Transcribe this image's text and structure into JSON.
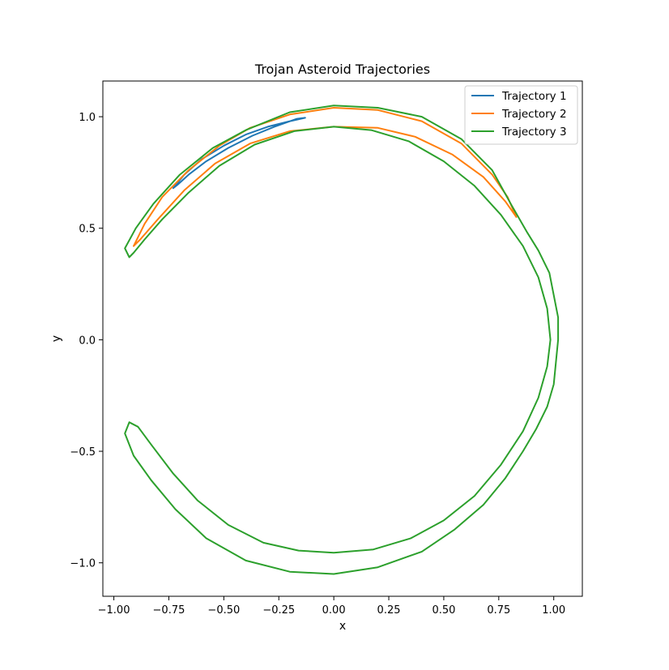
{
  "chart_data": {
    "type": "line",
    "title": "Trojan Asteroid Trajectories",
    "xlabel": "x",
    "ylabel": "y",
    "xlim": [
      -1.05,
      1.13
    ],
    "ylim": [
      -1.15,
      1.16
    ],
    "xticks": [
      -1.0,
      -0.75,
      -0.5,
      -0.25,
      0.0,
      0.25,
      0.5,
      0.75,
      1.0
    ],
    "xtick_labels": [
      "−1.00",
      "−0.75",
      "−0.50",
      "−0.25",
      "0.00",
      "0.25",
      "0.50",
      "0.75",
      "1.00"
    ],
    "yticks": [
      -1.0,
      -0.5,
      0.0,
      0.5,
      1.0
    ],
    "ytick_labels": [
      "−1.0",
      "−0.5",
      "0.0",
      "0.5",
      "1.0"
    ],
    "grid": false,
    "legend_position": "top-right",
    "series": [
      {
        "name": "Trajectory 1",
        "color": "#1f77b4",
        "points": [
          [
            -0.73,
            0.68
          ],
          [
            -0.68,
            0.74
          ],
          [
            -0.6,
            0.81
          ],
          [
            -0.5,
            0.87
          ],
          [
            -0.4,
            0.92
          ],
          [
            -0.3,
            0.955
          ],
          [
            -0.2,
            0.98
          ],
          [
            -0.13,
            0.995
          ],
          [
            -0.17,
            0.99
          ],
          [
            -0.27,
            0.955
          ],
          [
            -0.37,
            0.915
          ],
          [
            -0.48,
            0.86
          ],
          [
            -0.58,
            0.8
          ],
          [
            -0.66,
            0.74
          ],
          [
            -0.71,
            0.695
          ],
          [
            -0.73,
            0.68
          ]
        ]
      },
      {
        "name": "Trajectory 2",
        "color": "#ff7f0e",
        "points": [
          [
            -0.91,
            0.42
          ],
          [
            -0.86,
            0.52
          ],
          [
            -0.78,
            0.64
          ],
          [
            -0.66,
            0.76
          ],
          [
            -0.52,
            0.87
          ],
          [
            -0.38,
            0.95
          ],
          [
            -0.2,
            1.01
          ],
          [
            0.0,
            1.04
          ],
          [
            0.2,
            1.03
          ],
          [
            0.4,
            0.98
          ],
          [
            0.58,
            0.88
          ],
          [
            0.72,
            0.74
          ],
          [
            0.79,
            0.64
          ],
          [
            0.83,
            0.55
          ],
          [
            0.78,
            0.62
          ],
          [
            0.68,
            0.73
          ],
          [
            0.54,
            0.83
          ],
          [
            0.37,
            0.91
          ],
          [
            0.2,
            0.95
          ],
          [
            0.0,
            0.955
          ],
          [
            -0.2,
            0.935
          ],
          [
            -0.38,
            0.88
          ],
          [
            -0.54,
            0.79
          ],
          [
            -0.68,
            0.67
          ],
          [
            -0.8,
            0.54
          ],
          [
            -0.88,
            0.45
          ],
          [
            -0.91,
            0.42
          ]
        ]
      },
      {
        "name": "Trajectory 3",
        "color": "#2ca02c",
        "points": [
          [
            -0.93,
            0.37
          ],
          [
            -0.95,
            0.41
          ],
          [
            -0.9,
            0.5
          ],
          [
            -0.82,
            0.61
          ],
          [
            -0.7,
            0.74
          ],
          [
            -0.55,
            0.86
          ],
          [
            -0.4,
            0.94
          ],
          [
            -0.2,
            1.02
          ],
          [
            0.0,
            1.05
          ],
          [
            0.2,
            1.04
          ],
          [
            0.4,
            1.0
          ],
          [
            0.58,
            0.9
          ],
          [
            0.72,
            0.76
          ],
          [
            0.81,
            0.6
          ],
          [
            0.88,
            0.48
          ],
          [
            0.93,
            0.4
          ],
          [
            0.98,
            0.3
          ],
          [
            1.0,
            0.2
          ],
          [
            1.02,
            0.1
          ],
          [
            1.02,
            0.0
          ],
          [
            1.01,
            -0.1
          ],
          [
            1.0,
            -0.2
          ],
          [
            0.97,
            -0.3
          ],
          [
            0.92,
            -0.4
          ],
          [
            0.86,
            -0.5
          ],
          [
            0.78,
            -0.62
          ],
          [
            0.68,
            -0.74
          ],
          [
            0.55,
            -0.85
          ],
          [
            0.4,
            -0.95
          ],
          [
            0.2,
            -1.02
          ],
          [
            0.0,
            -1.05
          ],
          [
            -0.2,
            -1.04
          ],
          [
            -0.4,
            -0.99
          ],
          [
            -0.58,
            -0.89
          ],
          [
            -0.72,
            -0.76
          ],
          [
            -0.83,
            -0.63
          ],
          [
            -0.91,
            -0.52
          ],
          [
            -0.95,
            -0.42
          ],
          [
            -0.93,
            -0.37
          ],
          [
            -0.89,
            -0.39
          ],
          [
            -0.83,
            -0.47
          ],
          [
            -0.73,
            -0.6
          ],
          [
            -0.62,
            -0.72
          ],
          [
            -0.48,
            -0.83
          ],
          [
            -0.32,
            -0.91
          ],
          [
            -0.16,
            -0.945
          ],
          [
            0.0,
            -0.955
          ],
          [
            0.18,
            -0.94
          ],
          [
            0.35,
            -0.89
          ],
          [
            0.5,
            -0.81
          ],
          [
            0.64,
            -0.7
          ],
          [
            0.76,
            -0.56
          ],
          [
            0.86,
            -0.41
          ],
          [
            0.93,
            -0.26
          ],
          [
            0.97,
            -0.12
          ],
          [
            0.985,
            0.0
          ],
          [
            0.97,
            0.14
          ],
          [
            0.93,
            0.28
          ],
          [
            0.86,
            0.42
          ],
          [
            0.76,
            0.56
          ],
          [
            0.64,
            0.69
          ],
          [
            0.5,
            0.8
          ],
          [
            0.34,
            0.89
          ],
          [
            0.17,
            0.94
          ],
          [
            0.0,
            0.955
          ],
          [
            -0.18,
            0.935
          ],
          [
            -0.36,
            0.875
          ],
          [
            -0.52,
            0.78
          ],
          [
            -0.66,
            0.66
          ],
          [
            -0.78,
            0.54
          ],
          [
            -0.86,
            0.45
          ],
          [
            -0.91,
            0.39
          ],
          [
            -0.93,
            0.37
          ]
        ]
      }
    ]
  }
}
